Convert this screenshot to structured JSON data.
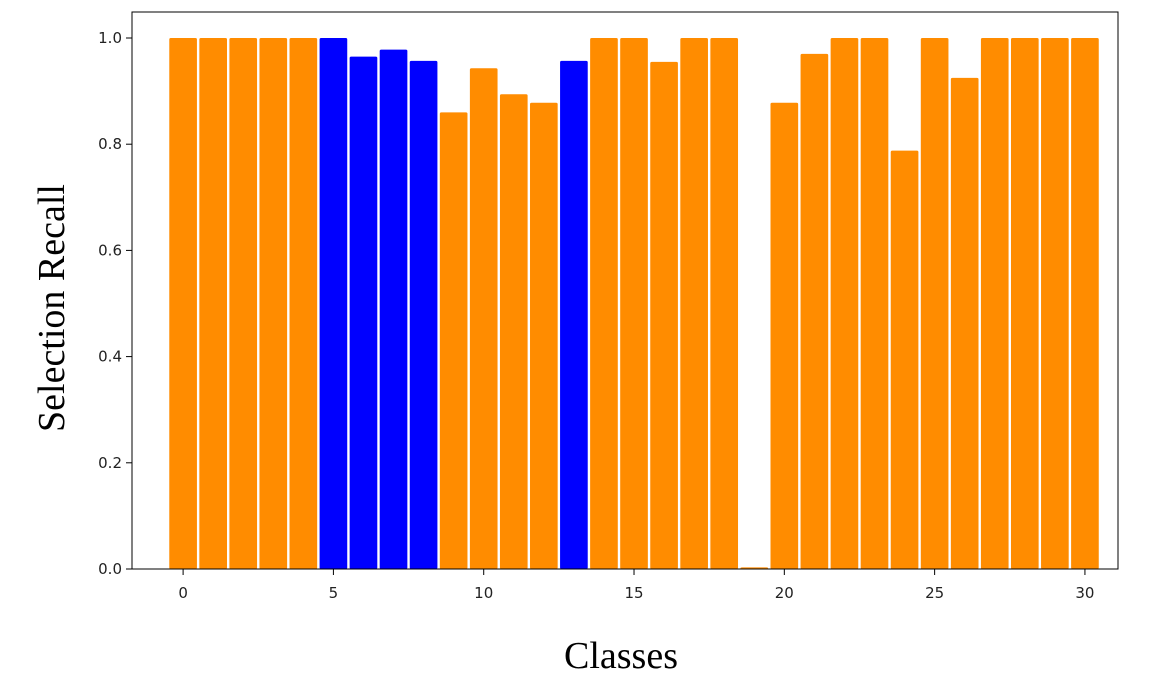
{
  "chart_data": {
    "type": "bar",
    "xlabel": "Classes",
    "ylabel": "Selection Recall",
    "xlim": [
      -1.7,
      31.1
    ],
    "ylim": [
      0.0,
      1.0
    ],
    "xticks": [
      0,
      5,
      10,
      15,
      20,
      25,
      30
    ],
    "yticks": [
      0.0,
      0.2,
      0.4,
      0.6,
      0.8,
      1.0
    ],
    "grid": false,
    "categories": [
      0,
      1,
      2,
      3,
      4,
      5,
      6,
      7,
      8,
      9,
      10,
      11,
      12,
      13,
      14,
      15,
      16,
      17,
      18,
      19,
      20,
      21,
      22,
      23,
      24,
      25,
      26,
      27,
      28,
      29,
      30
    ],
    "values": [
      1.0,
      1.0,
      1.0,
      1.0,
      1.0,
      1.0,
      0.965,
      0.978,
      0.957,
      0.86,
      0.943,
      0.894,
      0.878,
      0.957,
      1.0,
      1.0,
      0.955,
      1.0,
      1.0,
      0.003,
      0.878,
      0.97,
      1.0,
      1.0,
      0.788,
      1.0,
      0.925,
      1.0,
      1.0,
      1.0,
      1.0
    ],
    "colors": [
      "#FF8C00",
      "#FF8C00",
      "#FF8C00",
      "#FF8C00",
      "#FF8C00",
      "#0000FF",
      "#0000FF",
      "#0000FF",
      "#0000FF",
      "#FF8C00",
      "#FF8C00",
      "#FF8C00",
      "#FF8C00",
      "#0000FF",
      "#FF8C00",
      "#FF8C00",
      "#FF8C00",
      "#FF8C00",
      "#FF8C00",
      "#FF8C00",
      "#FF8C00",
      "#FF8C00",
      "#FF8C00",
      "#FF8C00",
      "#FF8C00",
      "#FF8C00",
      "#FF8C00",
      "#FF8C00",
      "#FF8C00",
      "#FF8C00",
      "#FF8C00"
    ],
    "bar_width": 0.92
  }
}
